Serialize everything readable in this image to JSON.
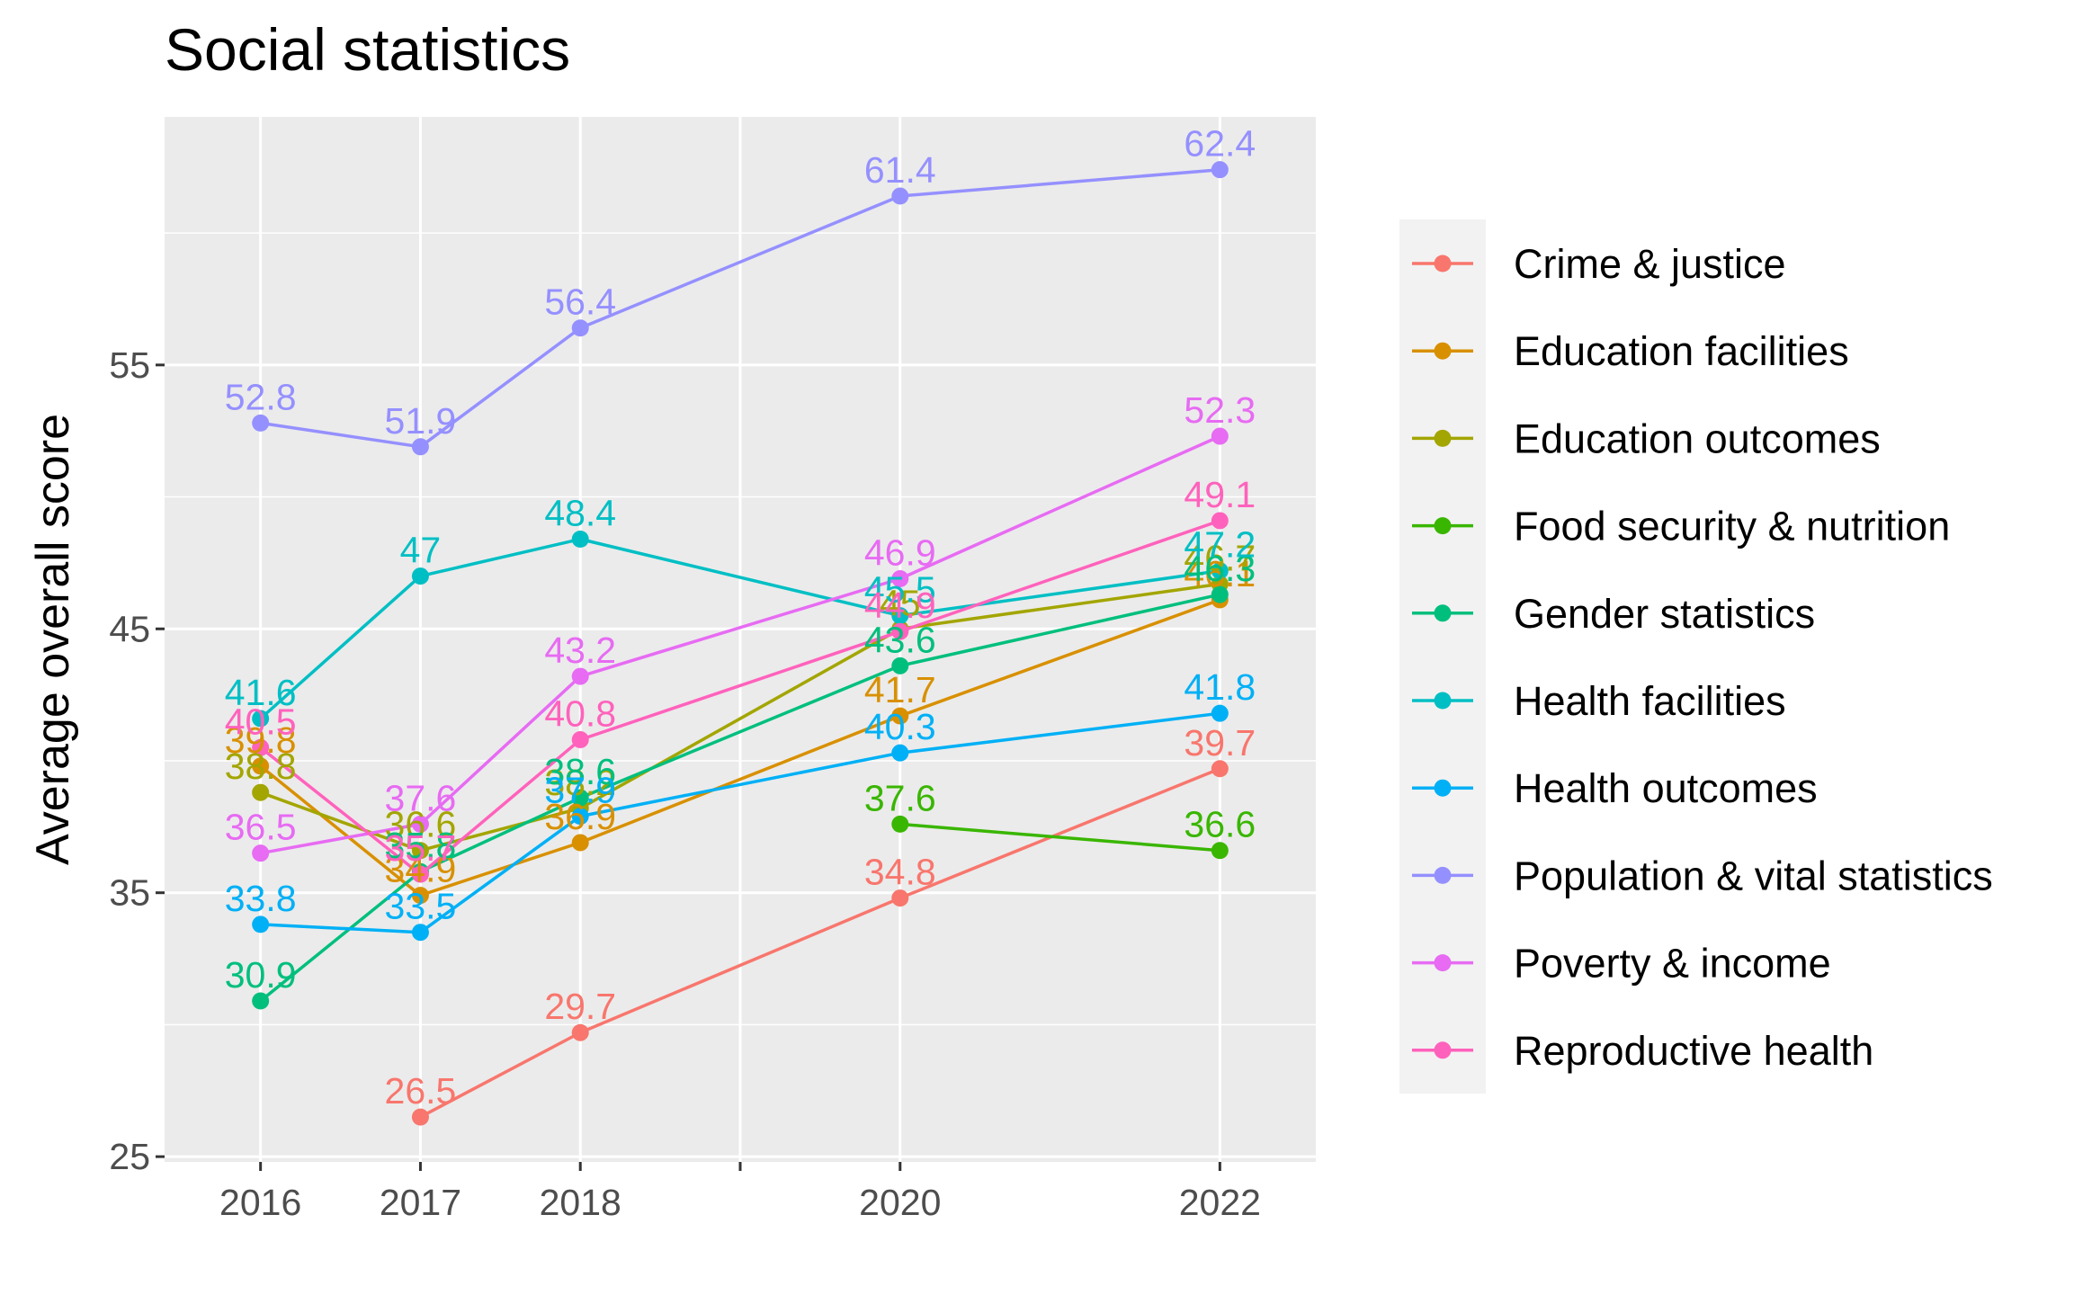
{
  "chart_data": {
    "type": "line",
    "title": "Social statistics",
    "xlabel": "",
    "ylabel": "Average overall score",
    "x": [
      2016,
      2017,
      2018,
      2020,
      2022
    ],
    "xlim": [
      2015.4,
      2022.6
    ],
    "ylim": [
      24.8,
      64.4
    ],
    "x_ticks": [
      2016,
      2017,
      2018,
      2020,
      2022
    ],
    "y_ticks": [
      25,
      35,
      45,
      55
    ],
    "grid": true,
    "legend_position": "right",
    "series": [
      {
        "name": "Crime & justice",
        "color": "#F8766D",
        "values": [
          null,
          26.5,
          29.7,
          34.8,
          39.7
        ]
      },
      {
        "name": "Education facilities",
        "color": "#D89000",
        "values": [
          39.8,
          34.9,
          36.9,
          41.7,
          46.1
        ]
      },
      {
        "name": "Education outcomes",
        "color": "#A3A500",
        "values": [
          38.8,
          36.6,
          38.2,
          45.0,
          46.7
        ]
      },
      {
        "name": "Food security & nutrition",
        "color": "#39B600",
        "values": [
          null,
          null,
          null,
          37.6,
          36.6
        ]
      },
      {
        "name": "Gender statistics",
        "color": "#00BF7D",
        "values": [
          30.9,
          35.8,
          38.6,
          43.6,
          46.3
        ]
      },
      {
        "name": "Health facilities",
        "color": "#00BFC4",
        "values": [
          41.6,
          47.0,
          48.4,
          45.5,
          47.2
        ]
      },
      {
        "name": "Health outcomes",
        "color": "#00B0F6",
        "values": [
          33.8,
          33.5,
          37.9,
          40.3,
          41.8
        ]
      },
      {
        "name": "Population & vital statistics",
        "color": "#9590FF",
        "values": [
          52.8,
          51.9,
          56.4,
          61.4,
          62.4
        ]
      },
      {
        "name": "Poverty & income",
        "color": "#E76BF3",
        "values": [
          36.5,
          37.6,
          43.2,
          46.9,
          52.3
        ]
      },
      {
        "name": "Reproductive health",
        "color": "#FF62BC",
        "values": [
          40.5,
          35.7,
          40.8,
          44.9,
          49.1
        ]
      }
    ]
  }
}
